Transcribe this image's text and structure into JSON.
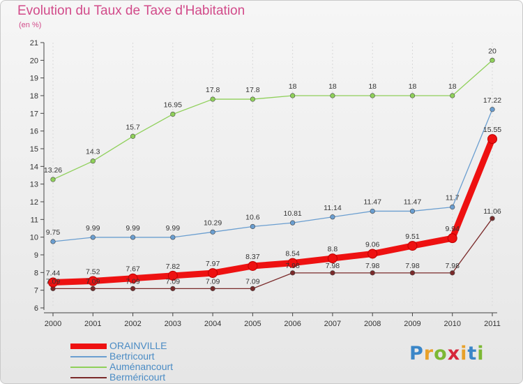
{
  "title": "Evolution du Taux de Taxe d'Habitation",
  "subtitle": "(en %)",
  "brand": {
    "letters": [
      {
        "ch": "P",
        "color": "#3a86c8"
      },
      {
        "ch": "r",
        "color": "#e8a12a"
      },
      {
        "ch": "o",
        "color": "#7cb834"
      },
      {
        "ch": "x",
        "color": "#d6263b"
      },
      {
        "ch": "i",
        "color": "#e8a12a"
      },
      {
        "ch": "t",
        "color": "#3a86c8"
      },
      {
        "ch": "i",
        "color": "#7cb834"
      }
    ]
  },
  "chart_data": {
    "type": "line",
    "x": [
      "2000",
      "2001",
      "2002",
      "2003",
      "2004",
      "2005",
      "2006",
      "2007",
      "2008",
      "2009",
      "2010",
      "2011"
    ],
    "ylim": [
      6,
      21
    ],
    "yticks": [
      6,
      7,
      8,
      9,
      10,
      11,
      12,
      13,
      14,
      15,
      16,
      17,
      18,
      19,
      20,
      21
    ],
    "series": [
      {
        "name": "ORAINVILLE",
        "color": "#ee1111",
        "values": [
          7.44,
          7.52,
          7.67,
          7.82,
          7.97,
          8.37,
          8.54,
          8.8,
          9.06,
          9.51,
          9.94,
          15.55
        ],
        "labels": [
          "7.44",
          "7.52",
          "7.67",
          "7.82",
          "7.97",
          "8.37",
          "8.54",
          "8.8",
          "9.06",
          "9.51",
          "9.94",
          "15.55"
        ]
      },
      {
        "name": "Bertricourt",
        "color": "#6a9ed0",
        "values": [
          9.75,
          9.99,
          9.99,
          9.99,
          10.29,
          10.6,
          10.81,
          11.14,
          11.47,
          11.47,
          11.7,
          17.22
        ],
        "labels": [
          "9.75",
          "9.99",
          "9.99",
          "9.99",
          "10.29",
          "10.6",
          "10.81",
          "11.14",
          "11.47",
          "11.47",
          "11.7",
          "17.22"
        ]
      },
      {
        "name": "Auménancourt",
        "color": "#8fd05a",
        "values": [
          13.26,
          14.3,
          15.7,
          16.95,
          17.8,
          17.8,
          18,
          18,
          18,
          18,
          18,
          20
        ],
        "labels": [
          "13.26",
          "14.3",
          "15.7",
          "16.95",
          "17.8",
          "17.8",
          "18",
          "18",
          "18",
          "18",
          "18",
          "20"
        ]
      },
      {
        "name": "Berméricourt",
        "color": "#7a2a2a",
        "values": [
          7.09,
          7.09,
          7.09,
          7.09,
          7.09,
          7.09,
          7.98,
          7.98,
          7.98,
          7.98,
          7.98,
          11.06
        ],
        "labels": [
          "7.09",
          "7.09",
          "7.09",
          "7.09",
          "7.09",
          "7.09",
          "7.98",
          "7.98",
          "7.98",
          "7.98",
          "7.98",
          "11.06"
        ]
      }
    ]
  }
}
